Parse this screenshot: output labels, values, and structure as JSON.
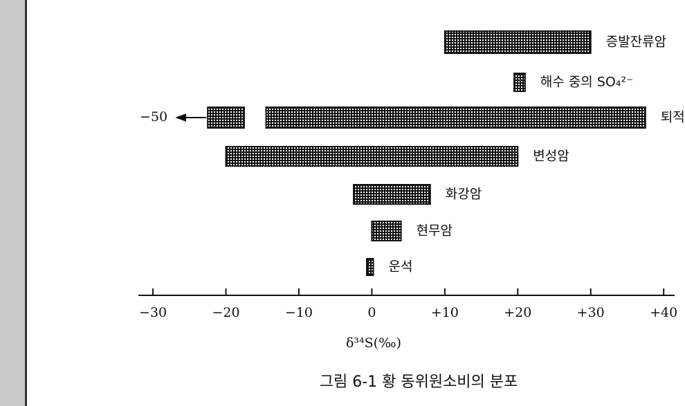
{
  "chart_data": {
    "type": "range-bar",
    "caption": "그림 6-1 황 동위원소비의 분포",
    "x_label": "δ³⁴S(‰)",
    "xlim": [
      -32,
      41.5
    ],
    "xticks": [
      {
        "value": -30,
        "label": "−30"
      },
      {
        "value": -20,
        "label": "−20"
      },
      {
        "value": -10,
        "label": "−10"
      },
      0,
      {
        "value": 10,
        "label": "+10"
      },
      {
        "value": 20,
        "label": "+20"
      },
      {
        "value": 30,
        "label": "+30"
      },
      {
        "value": 40,
        "label": "+40"
      }
    ],
    "color": "#111111",
    "series": [
      {
        "name": "증발잔류암",
        "ranges": [
          [
            10,
            30
          ]
        ]
      },
      {
        "name": "해수 중의 SO₄²⁻",
        "ranges": [
          [
            19.5,
            21
          ]
        ]
      },
      {
        "name": "퇴적",
        "ranges": [
          [
            -22.5,
            -17.5
          ],
          [
            -14.5,
            37.5
          ]
        ],
        "annotation": "−50"
      },
      {
        "name": "변성암",
        "ranges": [
          [
            -20,
            20
          ]
        ]
      },
      {
        "name": "화강암",
        "ranges": [
          [
            -2.5,
            8
          ]
        ]
      },
      {
        "name": "현무암",
        "ranges": [
          [
            0,
            4
          ]
        ]
      },
      {
        "name": "운석",
        "ranges": [
          [
            -0.7,
            0.2
          ]
        ]
      }
    ]
  }
}
